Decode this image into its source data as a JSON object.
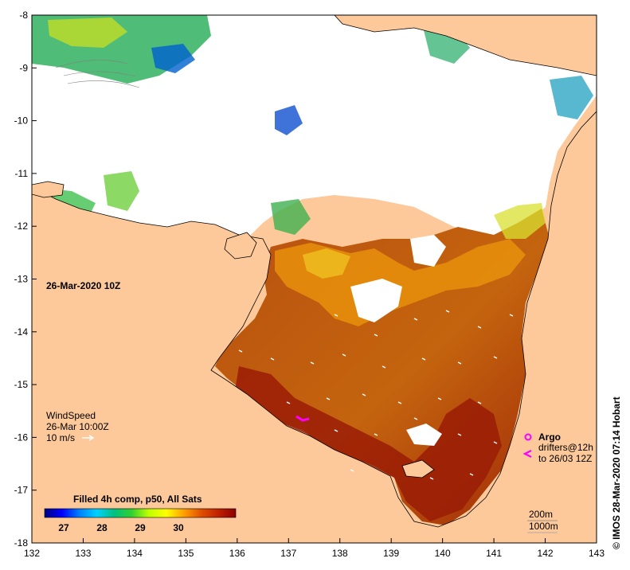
{
  "map": {
    "date_label": "26-Mar-2020 10Z",
    "credit": "© IMOS 28-Mar-2020 07:14 Hobart",
    "extent": {
      "lon": [
        132,
        143
      ],
      "lat": [
        -18,
        -8
      ]
    },
    "lon_ticks": [
      "132",
      "133",
      "134",
      "135",
      "136",
      "137",
      "138",
      "139",
      "140",
      "141",
      "142",
      "143"
    ],
    "lat_ticks": [
      "-8",
      "-9",
      "-10",
      "-11",
      "-12",
      "-13",
      "-14",
      "-15",
      "-16",
      "-17",
      "-18"
    ],
    "colors": {
      "land": "#fdc99a",
      "cloud": "#ffffff",
      "frame": "#000000",
      "argo": "#ff00ff",
      "wind_arrow": "#ffffff"
    }
  },
  "wind": {
    "title": "WindSpeed",
    "time": "26-Mar 10:00Z",
    "scale": "10 m/s",
    "arrow_icon": "right-arrow-icon"
  },
  "argo": {
    "title": "Argo",
    "line1": "drifters@12h",
    "line2": "to 26/03 12Z",
    "float_icon": "argo-float-icon",
    "drifter_icon": "drifter-track-icon"
  },
  "colorbar": {
    "title": "Filled 4h comp, p50, All Sats",
    "ticks": [
      "27",
      "28",
      "29",
      "30"
    ],
    "range": [
      26.5,
      31.5
    ],
    "stops": [
      "#00007f",
      "#0000ff",
      "#0080ff",
      "#00d0ff",
      "#00c080",
      "#30d030",
      "#c0ff00",
      "#ffff00",
      "#ffa000",
      "#e05000",
      "#c02000",
      "#8b0000"
    ]
  },
  "contours": {
    "line1": "200m",
    "line2": "1000m"
  }
}
